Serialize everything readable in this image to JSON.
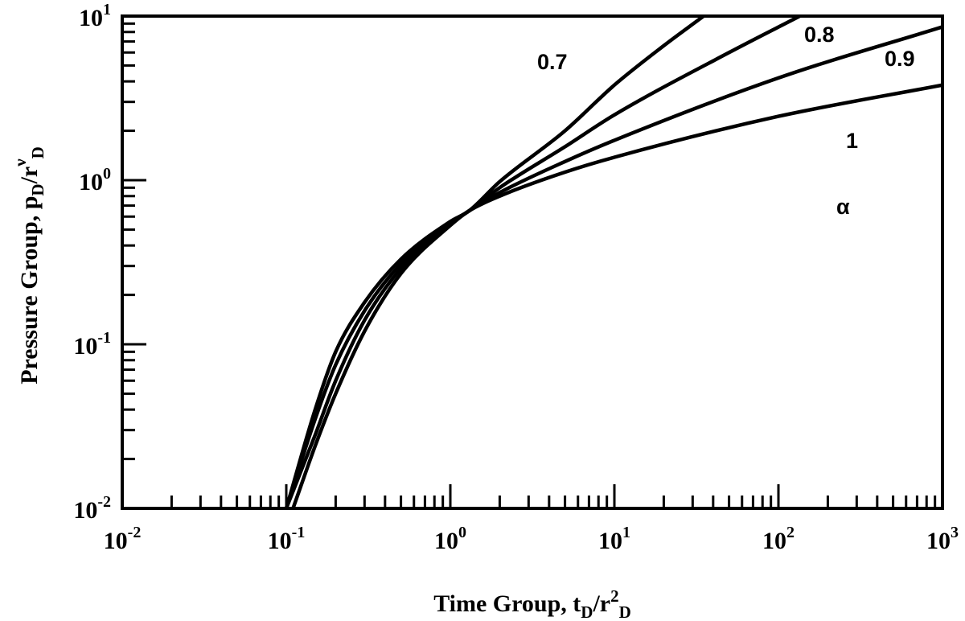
{
  "chart_data": {
    "type": "line",
    "x_scale": "log",
    "y_scale": "log",
    "xlim": [
      0.01,
      1000
    ],
    "ylim": [
      0.01,
      10
    ],
    "xlabel": {
      "prefix": "Time Group, t",
      "sub1": "D",
      "mid": "/r",
      "sup": "2",
      "sub2": "D"
    },
    "ylabel": {
      "prefix": "Pressure Group, p",
      "sub1": "D",
      "mid": "/r",
      "sup": "ν",
      "sub2": "D"
    },
    "x_ticks": [
      {
        "base": "10",
        "exp": "-2",
        "value": 0.01
      },
      {
        "base": "10",
        "exp": "-1",
        "value": 0.1
      },
      {
        "base": "10",
        "exp": "0",
        "value": 1
      },
      {
        "base": "10",
        "exp": "1",
        "value": 10
      },
      {
        "base": "10",
        "exp": "2",
        "value": 100
      },
      {
        "base": "10",
        "exp": "3",
        "value": 1000
      }
    ],
    "y_ticks": [
      {
        "base": "10",
        "exp": "-2",
        "value": 0.01
      },
      {
        "base": "10",
        "exp": "-1",
        "value": 0.1
      },
      {
        "base": "10",
        "exp": "0",
        "value": 1
      },
      {
        "base": "10",
        "exp": "1",
        "value": 10
      }
    ],
    "grid": false,
    "legend_symbol": "α",
    "series": [
      {
        "name": "0.7",
        "x": [
          0.1,
          0.15,
          0.2,
          0.3,
          0.5,
          1,
          1.3,
          2,
          5,
          10,
          20,
          35
        ],
        "y": [
          0.01,
          0.04,
          0.09,
          0.18,
          0.33,
          0.56,
          0.65,
          0.98,
          2.0,
          3.8,
          6.6,
          10
        ]
      },
      {
        "name": "0.8",
        "x": [
          0.1,
          0.15,
          0.2,
          0.3,
          0.5,
          1,
          1.3,
          2,
          5,
          10,
          50,
          135
        ],
        "y": [
          0.01,
          0.035,
          0.075,
          0.16,
          0.31,
          0.55,
          0.65,
          0.9,
          1.6,
          2.5,
          6.0,
          10
        ]
      },
      {
        "name": "0.9",
        "x": [
          0.1,
          0.15,
          0.2,
          0.3,
          0.5,
          1,
          1.3,
          2,
          5,
          10,
          100,
          1000
        ],
        "y": [
          0.01,
          0.028,
          0.06,
          0.14,
          0.29,
          0.54,
          0.65,
          0.84,
          1.3,
          1.75,
          4.2,
          8.6
        ]
      },
      {
        "name": "1",
        "x": [
          0.11,
          0.15,
          0.2,
          0.3,
          0.5,
          1,
          1.3,
          2,
          5,
          10,
          100,
          1000
        ],
        "y": [
          0.01,
          0.024,
          0.05,
          0.12,
          0.27,
          0.53,
          0.65,
          0.8,
          1.12,
          1.38,
          2.45,
          3.8
        ]
      }
    ]
  }
}
